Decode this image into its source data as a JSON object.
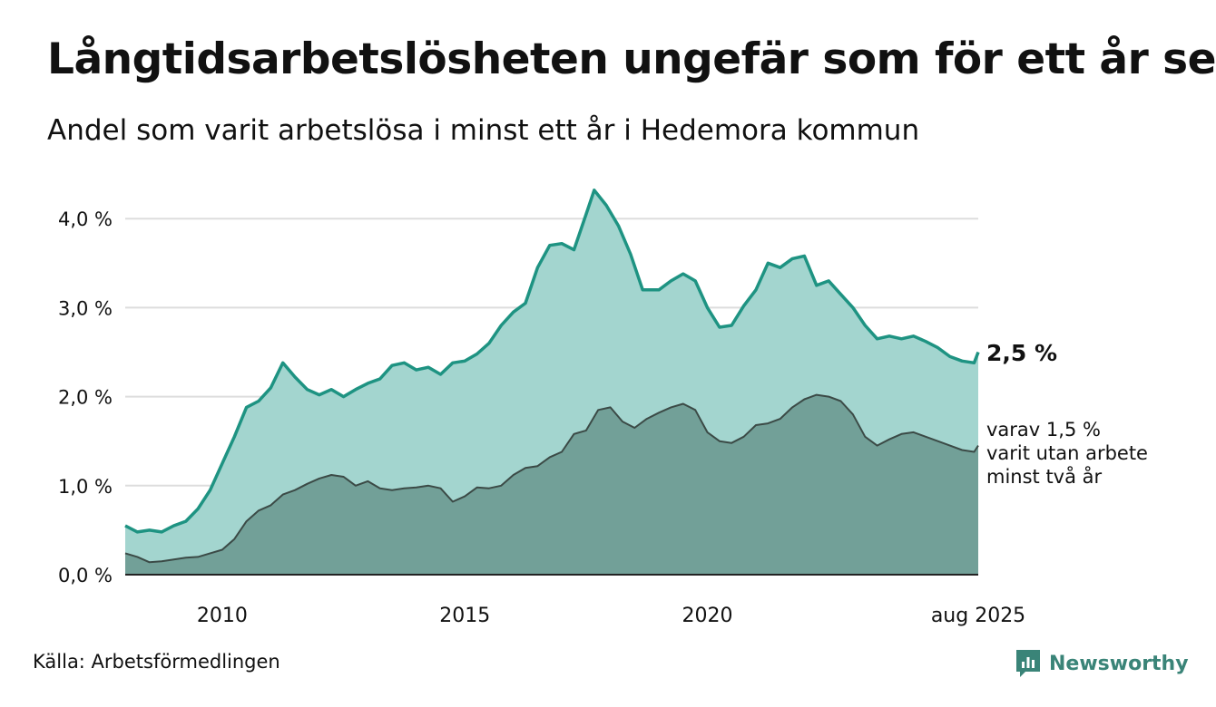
{
  "title": "Långtidsarbetslösheten ungefär som för ett år sen",
  "subtitle": "Andel som varit arbetslösa i minst ett år i Hedemora kommun",
  "source": "Källa: Arbetsförmedlingen",
  "brand": "Newsworthy",
  "colors": {
    "total_line": "#1e9382",
    "total_fill": "#a3d5cf",
    "long_line": "#3b4a46",
    "long_fill": "#72a098",
    "grid": "#dddddd",
    "axis": "#222222"
  },
  "chart_data": {
    "type": "area",
    "x_tick_labels": [
      "2010",
      "2015",
      "2020",
      "aug 2025"
    ],
    "x_tick_dates": [
      "2010-01",
      "2015-01",
      "2020-01",
      "2025-08"
    ],
    "y_tick_labels": [
      "0,0 %",
      "1,0 %",
      "2,0 %",
      "3,0 %",
      "4,0 %"
    ],
    "y_tick_values": [
      0,
      1,
      2,
      3,
      4
    ],
    "ylim": [
      0,
      4.3
    ],
    "x_range": [
      "2008-01",
      "2025-08"
    ],
    "grid": true,
    "end_labels": {
      "total": "2,5 %",
      "long": [
        "varav 1,5 %",
        "varit utan arbete",
        "minst två år"
      ]
    },
    "series": [
      {
        "id": "total",
        "points": [
          [
            "2008-01",
            0.55
          ],
          [
            "2008-04",
            0.48
          ],
          [
            "2008-07",
            0.5
          ],
          [
            "2008-10",
            0.48
          ],
          [
            "2009-01",
            0.55
          ],
          [
            "2009-04",
            0.6
          ],
          [
            "2009-07",
            0.74
          ],
          [
            "2009-10",
            0.95
          ],
          [
            "2010-01",
            1.25
          ],
          [
            "2010-04",
            1.55
          ],
          [
            "2010-07",
            1.88
          ],
          [
            "2010-10",
            1.95
          ],
          [
            "2011-01",
            2.1
          ],
          [
            "2011-04",
            2.38
          ],
          [
            "2011-07",
            2.22
          ],
          [
            "2011-10",
            2.08
          ],
          [
            "2012-01",
            2.02
          ],
          [
            "2012-04",
            2.08
          ],
          [
            "2012-07",
            2.0
          ],
          [
            "2012-10",
            2.08
          ],
          [
            "2013-01",
            2.15
          ],
          [
            "2013-04",
            2.2
          ],
          [
            "2013-07",
            2.35
          ],
          [
            "2013-10",
            2.38
          ],
          [
            "2014-01",
            2.3
          ],
          [
            "2014-04",
            2.33
          ],
          [
            "2014-07",
            2.25
          ],
          [
            "2014-10",
            2.38
          ],
          [
            "2015-01",
            2.4
          ],
          [
            "2015-04",
            2.48
          ],
          [
            "2015-07",
            2.6
          ],
          [
            "2015-10",
            2.8
          ],
          [
            "2016-01",
            2.95
          ],
          [
            "2016-04",
            3.05
          ],
          [
            "2016-07",
            3.45
          ],
          [
            "2016-10",
            3.7
          ],
          [
            "2017-01",
            3.72
          ],
          [
            "2017-04",
            3.65
          ],
          [
            "2017-07",
            4.05
          ],
          [
            "2017-09",
            4.32
          ],
          [
            "2017-12",
            4.15
          ],
          [
            "2018-03",
            3.92
          ],
          [
            "2018-06",
            3.6
          ],
          [
            "2018-09",
            3.2
          ],
          [
            "2019-01",
            3.2
          ],
          [
            "2019-04",
            3.3
          ],
          [
            "2019-07",
            3.38
          ],
          [
            "2019-10",
            3.3
          ],
          [
            "2020-01",
            3.0
          ],
          [
            "2020-04",
            2.78
          ],
          [
            "2020-07",
            2.8
          ],
          [
            "2020-10",
            3.02
          ],
          [
            "2021-01",
            3.2
          ],
          [
            "2021-04",
            3.5
          ],
          [
            "2021-07",
            3.45
          ],
          [
            "2021-10",
            3.55
          ],
          [
            "2022-01",
            3.58
          ],
          [
            "2022-04",
            3.25
          ],
          [
            "2022-07",
            3.3
          ],
          [
            "2022-10",
            3.15
          ],
          [
            "2023-01",
            3.0
          ],
          [
            "2023-04",
            2.8
          ],
          [
            "2023-07",
            2.65
          ],
          [
            "2023-10",
            2.68
          ],
          [
            "2024-01",
            2.65
          ],
          [
            "2024-04",
            2.68
          ],
          [
            "2024-07",
            2.62
          ],
          [
            "2024-10",
            2.55
          ],
          [
            "2025-01",
            2.45
          ],
          [
            "2025-04",
            2.4
          ],
          [
            "2025-07",
            2.38
          ],
          [
            "2025-08",
            2.5
          ]
        ]
      },
      {
        "id": "long",
        "points": [
          [
            "2008-01",
            0.24
          ],
          [
            "2008-04",
            0.2
          ],
          [
            "2008-07",
            0.14
          ],
          [
            "2008-10",
            0.15
          ],
          [
            "2009-01",
            0.17
          ],
          [
            "2009-04",
            0.19
          ],
          [
            "2009-07",
            0.2
          ],
          [
            "2009-10",
            0.24
          ],
          [
            "2010-01",
            0.28
          ],
          [
            "2010-04",
            0.4
          ],
          [
            "2010-07",
            0.6
          ],
          [
            "2010-10",
            0.72
          ],
          [
            "2011-01",
            0.78
          ],
          [
            "2011-04",
            0.9
          ],
          [
            "2011-07",
            0.95
          ],
          [
            "2011-10",
            1.02
          ],
          [
            "2012-01",
            1.08
          ],
          [
            "2012-04",
            1.12
          ],
          [
            "2012-07",
            1.1
          ],
          [
            "2012-10",
            1.0
          ],
          [
            "2013-01",
            1.05
          ],
          [
            "2013-04",
            0.97
          ],
          [
            "2013-07",
            0.95
          ],
          [
            "2013-10",
            0.97
          ],
          [
            "2014-01",
            0.98
          ],
          [
            "2014-04",
            1.0
          ],
          [
            "2014-07",
            0.97
          ],
          [
            "2014-10",
            0.82
          ],
          [
            "2015-01",
            0.88
          ],
          [
            "2015-04",
            0.98
          ],
          [
            "2015-07",
            0.97
          ],
          [
            "2015-10",
            1.0
          ],
          [
            "2016-01",
            1.12
          ],
          [
            "2016-04",
            1.2
          ],
          [
            "2016-07",
            1.22
          ],
          [
            "2016-10",
            1.32
          ],
          [
            "2017-01",
            1.38
          ],
          [
            "2017-04",
            1.58
          ],
          [
            "2017-07",
            1.62
          ],
          [
            "2017-10",
            1.85
          ],
          [
            "2018-01",
            1.88
          ],
          [
            "2018-04",
            1.72
          ],
          [
            "2018-07",
            1.65
          ],
          [
            "2018-10",
            1.75
          ],
          [
            "2019-01",
            1.82
          ],
          [
            "2019-04",
            1.88
          ],
          [
            "2019-07",
            1.92
          ],
          [
            "2019-10",
            1.85
          ],
          [
            "2020-01",
            1.6
          ],
          [
            "2020-04",
            1.5
          ],
          [
            "2020-07",
            1.48
          ],
          [
            "2020-10",
            1.55
          ],
          [
            "2021-01",
            1.68
          ],
          [
            "2021-04",
            1.7
          ],
          [
            "2021-07",
            1.75
          ],
          [
            "2021-10",
            1.88
          ],
          [
            "2022-01",
            1.97
          ],
          [
            "2022-04",
            2.02
          ],
          [
            "2022-07",
            2.0
          ],
          [
            "2022-10",
            1.95
          ],
          [
            "2023-01",
            1.8
          ],
          [
            "2023-04",
            1.55
          ],
          [
            "2023-07",
            1.45
          ],
          [
            "2023-10",
            1.52
          ],
          [
            "2024-01",
            1.58
          ],
          [
            "2024-04",
            1.6
          ],
          [
            "2024-07",
            1.55
          ],
          [
            "2024-10",
            1.5
          ],
          [
            "2025-01",
            1.45
          ],
          [
            "2025-04",
            1.4
          ],
          [
            "2025-07",
            1.38
          ],
          [
            "2025-08",
            1.45
          ]
        ]
      }
    ]
  }
}
